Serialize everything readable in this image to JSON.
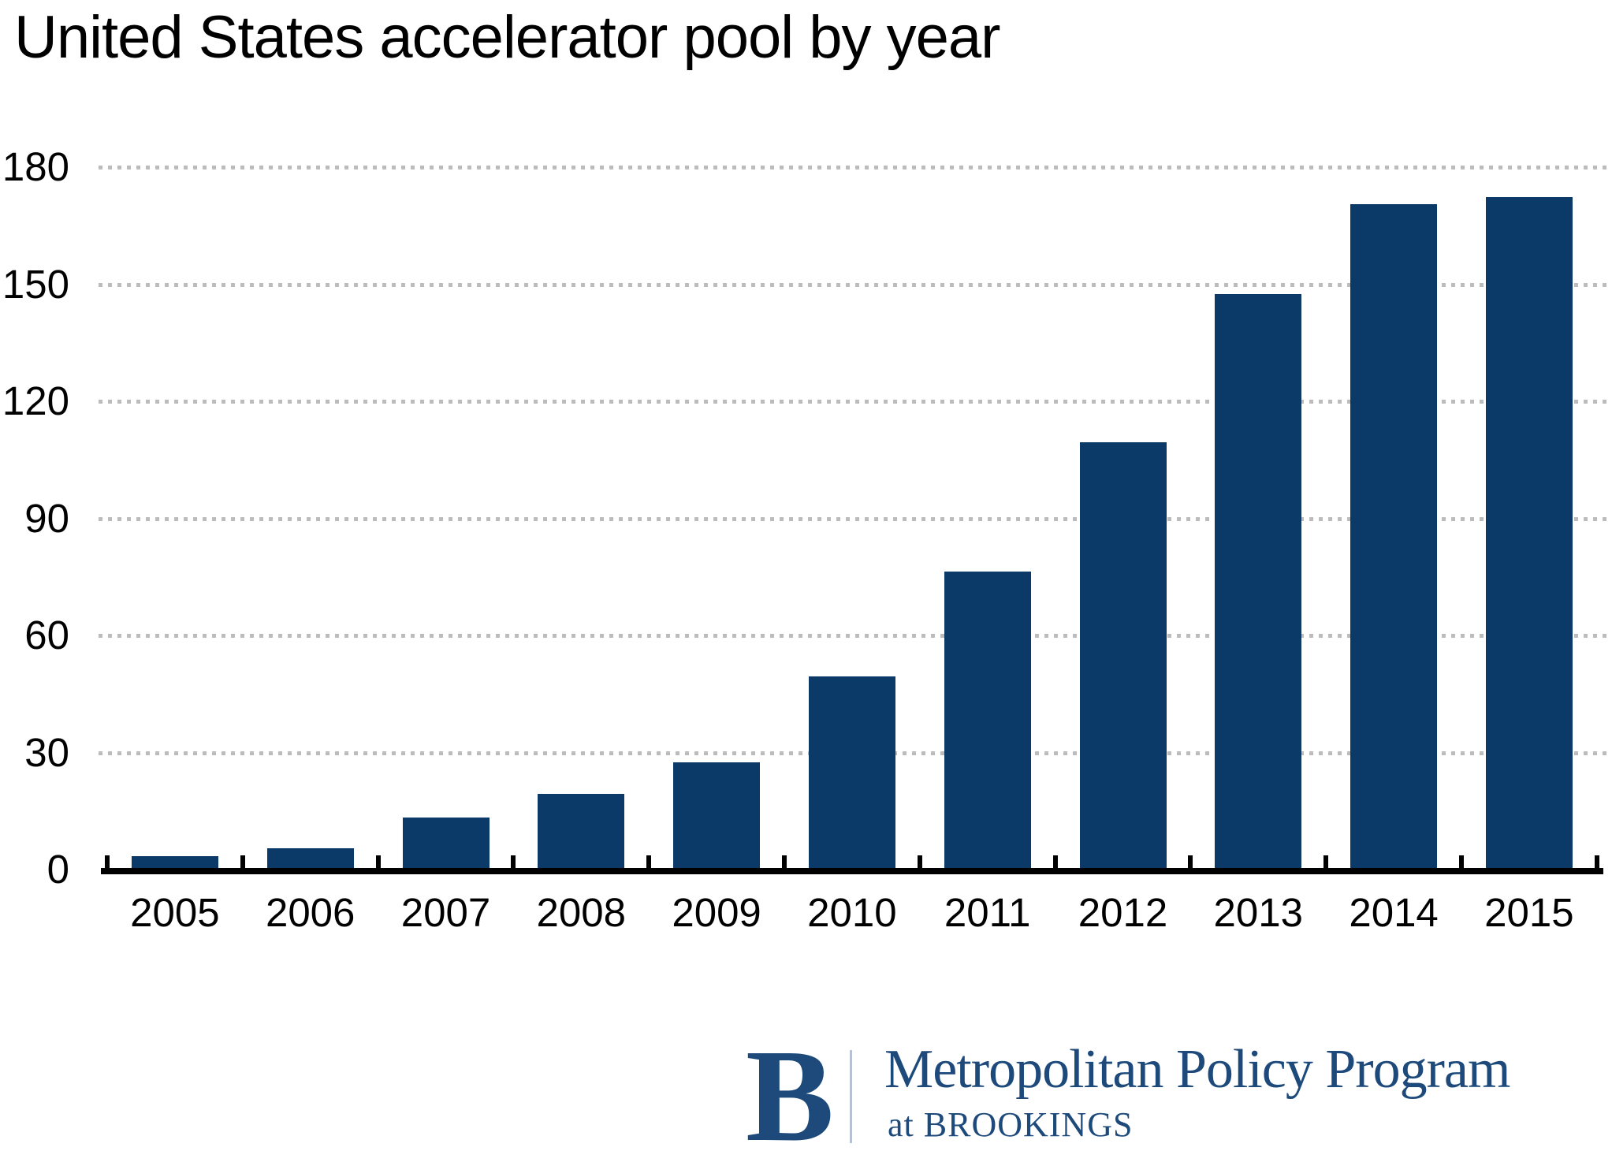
{
  "title": "United States accelerator pool by year",
  "chart_data": {
    "type": "bar",
    "categories": [
      "2005",
      "2006",
      "2007",
      "2008",
      "2009",
      "2010",
      "2011",
      "2012",
      "2013",
      "2014",
      "2015"
    ],
    "values": [
      3,
      5,
      13,
      19,
      27,
      49,
      76,
      109,
      147,
      170,
      172
    ],
    "title": "United States accelerator pool by year",
    "xlabel": "",
    "ylabel": "",
    "ylim": [
      0,
      180
    ],
    "yticks": [
      0,
      30,
      60,
      90,
      120,
      150,
      180
    ],
    "grid": "horizontal-dotted",
    "legend": "none",
    "bar_color": "#0c3a68",
    "gridline_color": "#bcbcbc",
    "axis_color": "#000000"
  },
  "footer": {
    "logo_letter": "B",
    "program_name": "Metropolitan Policy Program",
    "subtext": "at BROOKINGS",
    "brand_color": "#1d4a7b"
  }
}
